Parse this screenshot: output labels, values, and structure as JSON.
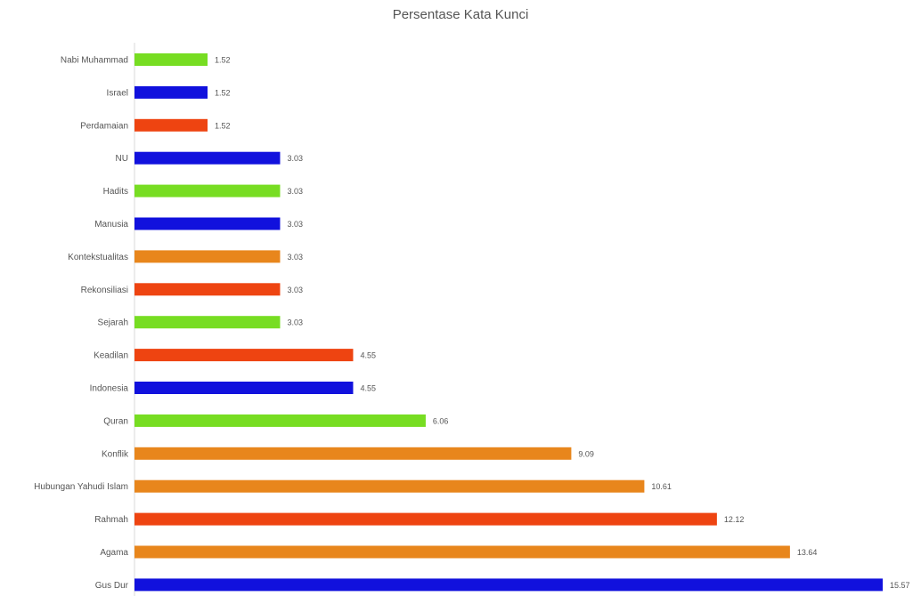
{
  "chart_data": {
    "type": "bar",
    "orientation": "horizontal",
    "title": "Persentase Kata Kunci",
    "xlabel": "",
    "ylabel": "",
    "xlim": [
      0,
      15.5
    ],
    "grid": false,
    "legend": "none",
    "categories": [
      "Nabi Muhammad",
      "Israel",
      "Perdamaian",
      "NU",
      "Hadits",
      "Manusia",
      "Kontekstualitas",
      "Rekonsiliasi",
      "Sejarah",
      "Keadilan",
      "Indonesia",
      "Quran",
      "Konflik",
      "Hubungan Yahudi Islam",
      "Rahmah",
      "Agama",
      "Gus Dur"
    ],
    "values": [
      1.52,
      1.52,
      1.52,
      3.03,
      3.03,
      3.03,
      3.03,
      3.03,
      3.03,
      4.55,
      4.55,
      6.06,
      9.09,
      10.61,
      12.12,
      13.64,
      15.57
    ],
    "value_labels": [
      "1.52",
      "1.52",
      "1.52",
      "3.03",
      "3.03",
      "3.03",
      "3.03",
      "3.03",
      "3.03",
      "4.55",
      "4.55",
      "6.06",
      "9.09",
      "10.61",
      "12.12",
      "13.64",
      "15.57"
    ],
    "bar_colors": [
      "#77dd22",
      "#1111dd",
      "#ee4411",
      "#1111dd",
      "#77dd22",
      "#1111dd",
      "#e8861c",
      "#ee4411",
      "#77dd22",
      "#ee4411",
      "#1111dd",
      "#77dd22",
      "#e8861c",
      "#e8861c",
      "#ee4411",
      "#e8861c",
      "#1111dd"
    ]
  }
}
